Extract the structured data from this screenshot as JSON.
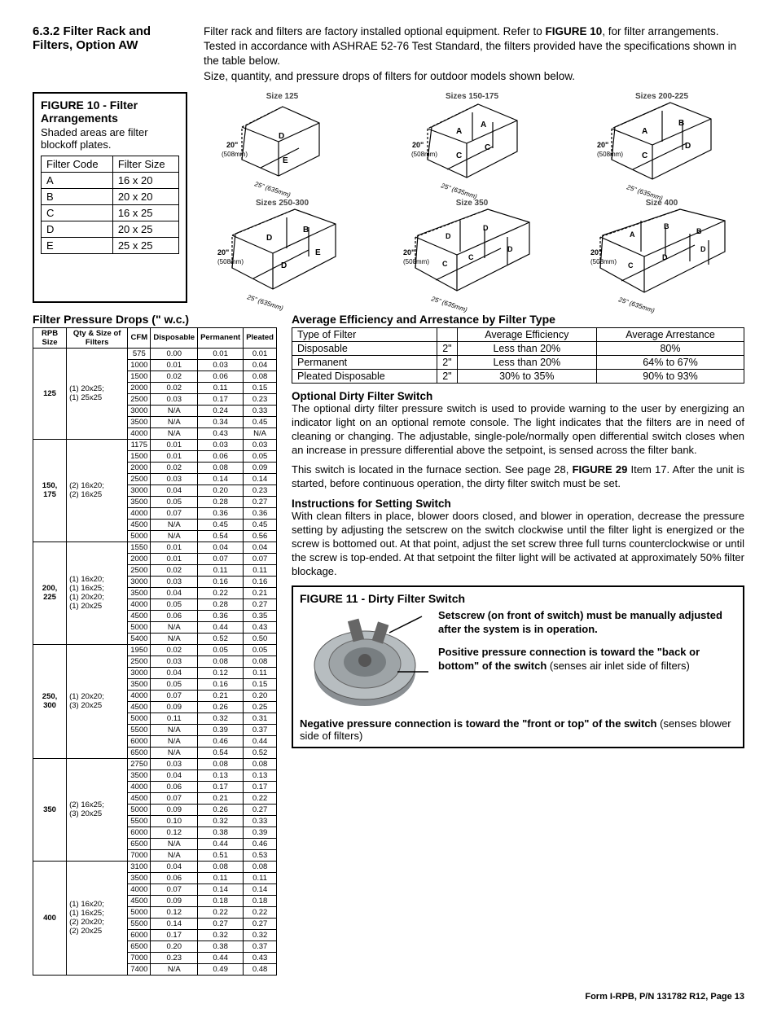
{
  "section": {
    "number": "6.3.2",
    "title": "Filter Rack and Filters, Option AW"
  },
  "intro": {
    "p1a": "Filter rack and filters are factory installed optional equipment. Refer to ",
    "p1b": "FIGURE 10",
    "p1c": ", for filter arrangements.",
    "p2": "Tested in accordance with ASHRAE 52-76 Test Standard, the filters provided have the specifications shown in the table below.",
    "p3": "Size, quantity, and pressure drops of filters for outdoor models shown below."
  },
  "figure10": {
    "title": "FIGURE 10 - Filter Arrangements",
    "note": "Shaded areas are filter blockoff plates.",
    "code_head": [
      "Filter Code",
      "Filter Size"
    ],
    "codes": [
      [
        "A",
        "16 x 20"
      ],
      [
        "B",
        "20 x 20"
      ],
      [
        "C",
        "16 x 25"
      ],
      [
        "D",
        "20 x 25"
      ],
      [
        "E",
        "25 x 25"
      ]
    ],
    "diagram_sizes": [
      "Size 125",
      "Sizes 150-175",
      "Sizes 200-225",
      "Sizes 250-300",
      "Size 350",
      "Size 400"
    ],
    "dim_h": "20\"",
    "dim_h_mm": "(508mm)",
    "dim_d": "25\" (635mm)"
  },
  "pressure_drops": {
    "title": "Filter Pressure Drops (\" w.c.)",
    "columns": [
      "RPB Size",
      "Qty & Size of Filters",
      "CFM",
      "Disposable",
      "Permanent",
      "Pleated"
    ],
    "groups": [
      {
        "size": "125",
        "qty": "(1) 20x25;\n(1) 25x25",
        "rows": [
          [
            "575",
            "0.00",
            "0.01",
            "0.01"
          ],
          [
            "1000",
            "0.01",
            "0.03",
            "0.04"
          ],
          [
            "1500",
            "0.02",
            "0.06",
            "0.08"
          ],
          [
            "2000",
            "0.02",
            "0.11",
            "0.15"
          ],
          [
            "2500",
            "0.03",
            "0.17",
            "0.23"
          ],
          [
            "3000",
            "N/A",
            "0.24",
            "0.33"
          ],
          [
            "3500",
            "N/A",
            "0.34",
            "0.45"
          ],
          [
            "4000",
            "N/A",
            "0.43",
            "N/A"
          ]
        ]
      },
      {
        "size": "150, 175",
        "qty": "(2) 16x20;\n(2) 16x25",
        "rows": [
          [
            "1175",
            "0.01",
            "0.03",
            "0.03"
          ],
          [
            "1500",
            "0.01",
            "0.06",
            "0.05"
          ],
          [
            "2000",
            "0.02",
            "0.08",
            "0.09"
          ],
          [
            "2500",
            "0.03",
            "0.14",
            "0.14"
          ],
          [
            "3000",
            "0.04",
            "0.20",
            "0.23"
          ],
          [
            "3500",
            "0.05",
            "0.28",
            "0.27"
          ],
          [
            "4000",
            "0.07",
            "0.36",
            "0.36"
          ],
          [
            "4500",
            "N/A",
            "0.45",
            "0.45"
          ],
          [
            "5000",
            "N/A",
            "0.54",
            "0.56"
          ]
        ]
      },
      {
        "size": "200, 225",
        "qty": "(1) 16x20;\n(1) 16x25;\n(1) 20x20;\n(1) 20x25",
        "rows": [
          [
            "1550",
            "0.01",
            "0.04",
            "0.04"
          ],
          [
            "2000",
            "0.01",
            "0.07",
            "0.07"
          ],
          [
            "2500",
            "0.02",
            "0.11",
            "0.11"
          ],
          [
            "3000",
            "0.03",
            "0.16",
            "0.16"
          ],
          [
            "3500",
            "0.04",
            "0.22",
            "0.21"
          ],
          [
            "4000",
            "0.05",
            "0.28",
            "0.27"
          ],
          [
            "4500",
            "0.06",
            "0.36",
            "0.35"
          ],
          [
            "5000",
            "N/A",
            "0.44",
            "0.43"
          ],
          [
            "5400",
            "N/A",
            "0.52",
            "0.50"
          ]
        ]
      },
      {
        "size": "250, 300",
        "qty": "(1) 20x20;\n(3) 20x25",
        "rows": [
          [
            "1950",
            "0.02",
            "0.05",
            "0.05"
          ],
          [
            "2500",
            "0.03",
            "0.08",
            "0.08"
          ],
          [
            "3000",
            "0.04",
            "0.12",
            "0.11"
          ],
          [
            "3500",
            "0.05",
            "0.16",
            "0.15"
          ],
          [
            "4000",
            "0.07",
            "0.21",
            "0.20"
          ],
          [
            "4500",
            "0.09",
            "0.26",
            "0.25"
          ],
          [
            "5000",
            "0.11",
            "0.32",
            "0.31"
          ],
          [
            "5500",
            "N/A",
            "0.39",
            "0.37"
          ],
          [
            "6000",
            "N/A",
            "0.46",
            "0.44"
          ],
          [
            "6500",
            "N/A",
            "0.54",
            "0.52"
          ]
        ]
      },
      {
        "size": "350",
        "qty": "(2) 16x25;\n(3) 20x25",
        "rows": [
          [
            "2750",
            "0.03",
            "0.08",
            "0.08"
          ],
          [
            "3500",
            "0.04",
            "0.13",
            "0.13"
          ],
          [
            "4000",
            "0.06",
            "0.17",
            "0.17"
          ],
          [
            "4500",
            "0.07",
            "0.21",
            "0.22"
          ],
          [
            "5000",
            "0.09",
            "0.26",
            "0.27"
          ],
          [
            "5500",
            "0.10",
            "0.32",
            "0.33"
          ],
          [
            "6000",
            "0.12",
            "0.38",
            "0.39"
          ],
          [
            "6500",
            "N/A",
            "0.44",
            "0.46"
          ],
          [
            "7000",
            "N/A",
            "0.51",
            "0.53"
          ]
        ]
      },
      {
        "size": "400",
        "qty": "(1) 16x20;\n(1) 16x25;\n(2) 20x20;\n(2) 20x25",
        "rows": [
          [
            "3100",
            "0.04",
            "0.08",
            "0.08"
          ],
          [
            "3500",
            "0.06",
            "0.11",
            "0.11"
          ],
          [
            "4000",
            "0.07",
            "0.14",
            "0.14"
          ],
          [
            "4500",
            "0.09",
            "0.18",
            "0.18"
          ],
          [
            "5000",
            "0.12",
            "0.22",
            "0.22"
          ],
          [
            "5500",
            "0.14",
            "0.27",
            "0.27"
          ],
          [
            "6000",
            "0.17",
            "0.32",
            "0.32"
          ],
          [
            "6500",
            "0.20",
            "0.38",
            "0.37"
          ],
          [
            "7000",
            "0.23",
            "0.44",
            "0.43"
          ],
          [
            "7400",
            "N/A",
            "0.49",
            "0.48"
          ]
        ]
      }
    ]
  },
  "efficiency": {
    "title": "Average Efficiency and Arrestance by Filter Type",
    "columns": [
      "Type of Filter",
      "",
      "Average Efficiency",
      "Average Arrestance"
    ],
    "rows": [
      [
        "Disposable",
        "2\"",
        "Less than 20%",
        "80%"
      ],
      [
        "Permanent",
        "2\"",
        "Less than 20%",
        "64% to 67%"
      ],
      [
        "Pleated Disposable",
        "2\"",
        "30% to 35%",
        "90% to 93%"
      ]
    ]
  },
  "dirty_filter": {
    "title": "Optional Dirty Filter Switch",
    "p1": "The optional dirty filter pressure switch is used to provide warning to the user by energizing an indicator light on an optional remote console. The light indicates that the filters are in need of cleaning or changing. The adjustable, single-pole/normally open differential switch closes when an increase in pressure differential above the setpoint, is sensed across the filter bank.",
    "p2a": "This switch is located in the furnace section. See page 28, ",
    "p2b": "FIGURE 29",
    "p2c": " Item 17. After the unit is started, before continuous operation, the dirty filter switch must be set.",
    "instructions_title": "Instructions for Setting Switch",
    "p3": "With clean filters in place, blower doors closed, and blower in operation, decrease the pressure setting by adjusting the setscrew on the switch clockwise until the filter light is energized or the screw is bottomed out. At that point, adjust the set screw three full turns counterclockwise or until the screw is top-ended. At that setpoint the filter light will be activated at approximately 50% filter blockage."
  },
  "figure11": {
    "title": "FIGURE 11 - Dirty Filter Switch",
    "t1a": "Setscrew (on front of switch) must be manually adjusted after the system is in operation.",
    "t2a": "Positive pressure connection is toward the \"back or bottom\" of the switch ",
    "t2b": "(senses air inlet side of filters)",
    "t3a": "Negative pressure connection is toward the \"front or top\" of the switch ",
    "t3b": "(senses blower side of filters)"
  },
  "footer": "Form I-RPB, P/N 131782 R12, Page 13"
}
